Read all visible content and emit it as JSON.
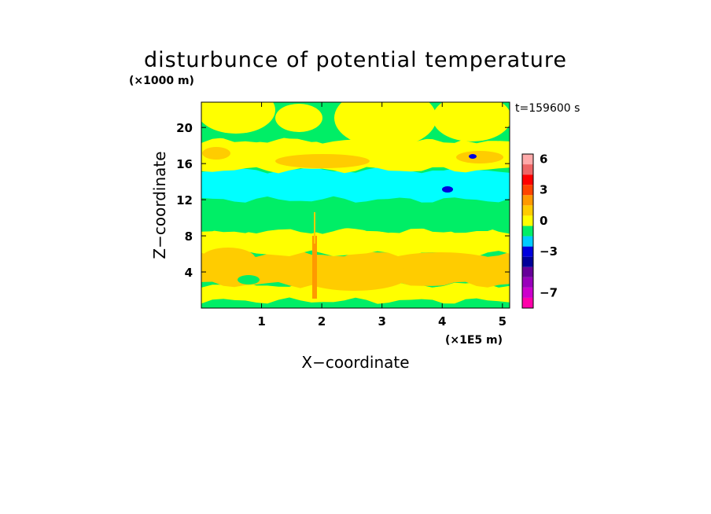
{
  "chart_data": {
    "type": "heatmap",
    "title": "disturbunce of potential temperature",
    "xlabel": "X−coordinate",
    "ylabel": "Z−coordinate",
    "x_units": "(×1E5 m)",
    "y_units": "(×1000 m)",
    "time_label": "t=159600 s",
    "xlim": [
      0,
      5.12
    ],
    "ylim": [
      0,
      22.8
    ],
    "x_ticks": [
      1,
      2,
      3,
      4,
      5
    ],
    "y_ticks": [
      4,
      8,
      12,
      16,
      20
    ],
    "colorbar": {
      "colors": [
        "#ff00aa",
        "#cc00cc",
        "#9900bb",
        "#660099",
        "#000099",
        "#0000dd",
        "#00ccff",
        "#00ee66",
        "#ffff00",
        "#ffcc00",
        "#ff9900",
        "#ff4400",
        "#ff0000",
        "#ee6666",
        "#ffaaaa"
      ],
      "labels": [
        "6",
        "3",
        "0",
        "−3",
        "−7"
      ],
      "label_values": [
        6,
        3,
        0,
        -3,
        -7
      ]
    },
    "bands": [
      {
        "z": [
          0,
          0.8
        ],
        "value": 0,
        "color": "#00ee66"
      },
      {
        "z": [
          0.8,
          2.6
        ],
        "value": 1,
        "color": "#ffff00"
      },
      {
        "z": [
          2.6,
          6.0
        ],
        "value": 2,
        "color": "#ffcc00"
      },
      {
        "z": [
          6.0,
          8.6
        ],
        "value": 1,
        "color": "#ffff00"
      },
      {
        "z": [
          8.6,
          12.0
        ],
        "value": 0,
        "color": "#00ee66"
      },
      {
        "z": [
          12.0,
          15.3
        ],
        "value": -1,
        "color": "#00ffff"
      },
      {
        "z": [
          15.3,
          18.6
        ],
        "value": 1,
        "color": "#ffff00"
      },
      {
        "z": [
          18.6,
          22.8
        ],
        "value": 0,
        "color": "#00ee66"
      }
    ]
  }
}
